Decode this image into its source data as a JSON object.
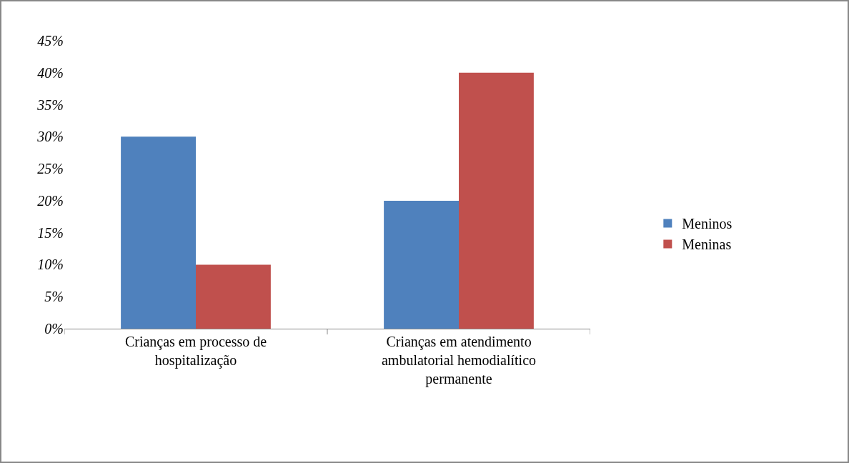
{
  "chart_data": {
    "type": "bar",
    "categories": [
      "Crianças em processo de hospitalização",
      "Crianças em atendimento ambulatorial hemodialítico permanente"
    ],
    "series": [
      {
        "name": "Meninos",
        "color": "#4f81bd",
        "values": [
          30,
          20
        ]
      },
      {
        "name": "Meninas",
        "color": "#c0504d",
        "values": [
          10,
          40
        ]
      }
    ],
    "ylim": [
      0,
      45
    ],
    "yticks": [
      {
        "value": 0,
        "label": "0%"
      },
      {
        "value": 5,
        "label": "5%"
      },
      {
        "value": 10,
        "label": "10%"
      },
      {
        "value": 15,
        "label": "15%"
      },
      {
        "value": 20,
        "label": "20%"
      },
      {
        "value": 25,
        "label": "25%"
      },
      {
        "value": 30,
        "label": "30%"
      },
      {
        "value": 35,
        "label": "35%"
      },
      {
        "value": 40,
        "label": "40%"
      },
      {
        "value": 45,
        "label": "45%"
      }
    ],
    "grid": false,
    "legend": "right"
  }
}
